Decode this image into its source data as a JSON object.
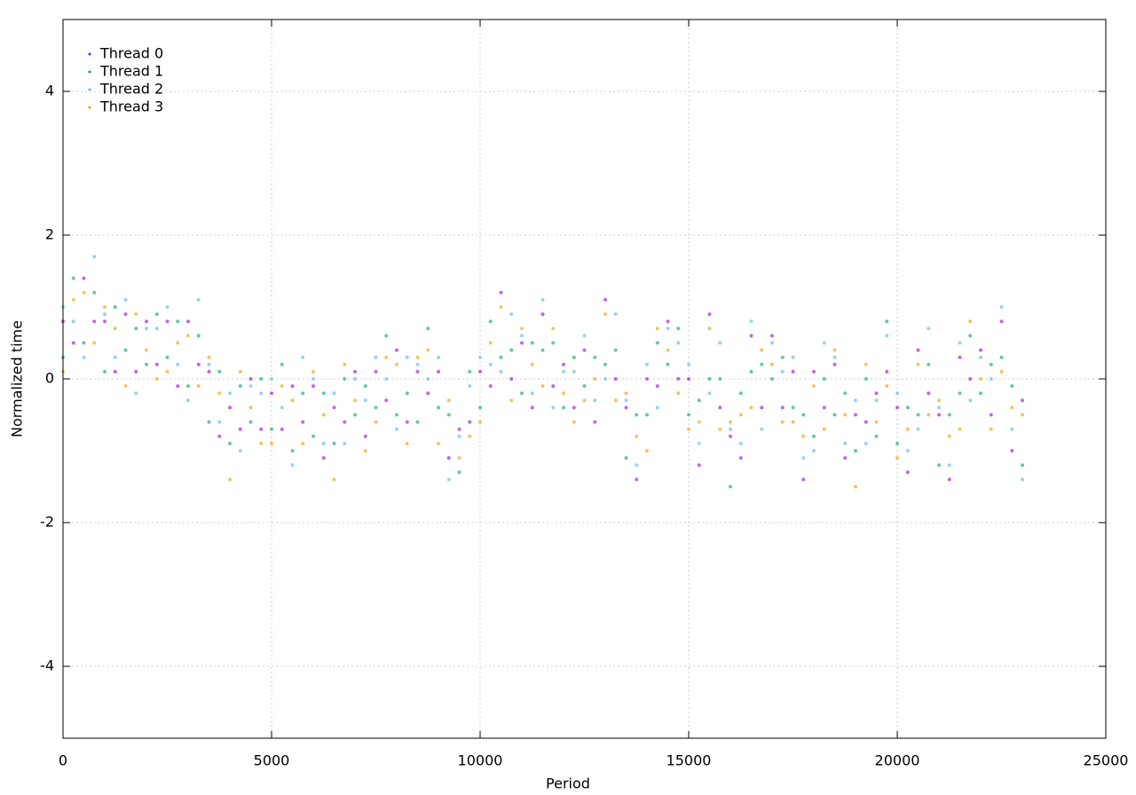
{
  "chart_data": {
    "type": "scatter",
    "xlabel": "Period",
    "ylabel": "Normalized time",
    "xlim": [
      0,
      25000
    ],
    "ylim": [
      -5,
      5
    ],
    "xticks": [
      0,
      5000,
      10000,
      15000,
      20000,
      25000
    ],
    "yticks": [
      -4,
      -2,
      0,
      2,
      4
    ],
    "grid": true,
    "legend": "upper left",
    "x": [
      0,
      250,
      500,
      750,
      1000,
      1250,
      1500,
      1750,
      2000,
      2250,
      2500,
      2750,
      3000,
      3250,
      3500,
      3750,
      4000,
      4250,
      4500,
      4750,
      5000,
      5250,
      5500,
      5750,
      6000,
      6250,
      6500,
      6750,
      7000,
      7250,
      7500,
      7750,
      8000,
      8250,
      8500,
      8750,
      9000,
      9250,
      9500,
      9750,
      10000,
      10250,
      10500,
      10750,
      11000,
      11250,
      11500,
      11750,
      12000,
      12250,
      12500,
      12750,
      13000,
      13250,
      13500,
      13750,
      14000,
      14250,
      14500,
      14750,
      15000,
      15250,
      15500,
      15750,
      16000,
      16250,
      16500,
      16750,
      17000,
      17250,
      17500,
      17750,
      18000,
      18250,
      18500,
      18750,
      19000,
      19250,
      19500,
      19750,
      20000,
      20250,
      20500,
      20750,
      21000,
      21250,
      21500,
      21750,
      22000,
      22250,
      22500,
      22750,
      23000
    ],
    "series": [
      {
        "name": "Thread 0",
        "color": "#9400d3",
        "values": [
          0.8,
          0.5,
          1.4,
          0.8,
          0.8,
          0.1,
          0.9,
          0.1,
          0.8,
          0.2,
          0.8,
          -0.1,
          0.8,
          0.2,
          0.1,
          -0.8,
          -0.4,
          -0.7,
          0.0,
          -0.7,
          -0.2,
          -0.7,
          -0.1,
          -0.6,
          -0.1,
          -1.1,
          -0.4,
          -0.6,
          0.1,
          -0.8,
          0.1,
          -0.3,
          0.4,
          -0.6,
          0.1,
          -0.2,
          0.1,
          -1.1,
          -0.7,
          -0.6,
          0.1,
          -0.1,
          1.2,
          0.0,
          0.5,
          -0.4,
          0.9,
          -0.1,
          0.2,
          -0.4,
          0.4,
          -0.6,
          1.1,
          0.0,
          -0.4,
          -1.4,
          0.0,
          -0.1,
          0.8,
          0.0,
          0.0,
          -1.2,
          0.9,
          -0.4,
          -0.8,
          -1.1,
          0.6,
          -0.4,
          0.6,
          -0.4,
          0.1,
          -1.4,
          0.1,
          -0.4,
          0.2,
          -1.1,
          -0.5,
          -0.6,
          -0.2,
          0.1,
          -0.4,
          -1.3,
          0.4,
          -0.2,
          -0.5,
          -1.4,
          0.3,
          0.0,
          0.4,
          -0.5,
          0.8,
          -1.0,
          -0.3
        ]
      },
      {
        "name": "Thread 1",
        "color": "#009e73",
        "values": [
          0.3,
          1.4,
          0.5,
          1.2,
          0.1,
          1.0,
          0.4,
          0.7,
          0.2,
          0.9,
          0.3,
          0.8,
          -0.1,
          0.6,
          -0.6,
          0.1,
          -0.9,
          -0.1,
          -0.6,
          0.0,
          -0.7,
          0.2,
          -1.0,
          -0.2,
          -0.8,
          -0.2,
          -0.9,
          0.0,
          -0.5,
          -0.1,
          -0.4,
          0.6,
          -0.5,
          -0.2,
          -0.6,
          0.7,
          -0.4,
          -0.5,
          -1.3,
          0.1,
          -0.4,
          0.8,
          0.3,
          0.4,
          -0.2,
          0.5,
          0.4,
          0.5,
          -0.4,
          0.3,
          -0.1,
          0.3,
          0.2,
          0.4,
          -1.1,
          -0.5,
          -0.5,
          0.5,
          0.2,
          0.7,
          -0.5,
          -0.3,
          0.0,
          0.0,
          -1.5,
          -0.2,
          0.1,
          0.2,
          0.0,
          0.3,
          -0.4,
          -0.5,
          -0.8,
          0.0,
          -0.5,
          -0.2,
          -1.0,
          0.0,
          -0.8,
          0.8,
          -0.9,
          -0.4,
          -0.5,
          0.2,
          -1.2,
          -0.5,
          -0.2,
          0.6,
          -0.2,
          0.2,
          0.3,
          -0.1,
          -1.2
        ]
      },
      {
        "name": "Thread 2",
        "color": "#56b4e9",
        "values": [
          1.0,
          0.8,
          0.3,
          1.7,
          0.9,
          0.3,
          1.1,
          -0.2,
          0.7,
          0.7,
          1.0,
          0.2,
          -0.3,
          1.1,
          0.2,
          -0.6,
          -0.2,
          -1.0,
          -0.1,
          -0.2,
          0.0,
          -0.4,
          -1.2,
          0.3,
          0.0,
          -0.9,
          -0.2,
          -0.9,
          0.0,
          -0.3,
          0.3,
          0.0,
          -0.7,
          0.3,
          0.2,
          0.0,
          0.3,
          -1.4,
          -0.8,
          -0.1,
          0.3,
          0.2,
          0.1,
          0.9,
          0.6,
          -0.2,
          1.1,
          -0.4,
          0.1,
          0.1,
          0.6,
          -0.3,
          0.0,
          0.9,
          -0.3,
          -1.2,
          0.2,
          -0.4,
          0.7,
          0.5,
          0.2,
          -0.9,
          -0.2,
          0.5,
          -0.7,
          -0.9,
          0.8,
          -0.7,
          0.5,
          0.1,
          0.3,
          -1.1,
          -1.0,
          0.5,
          0.3,
          -0.9,
          -0.3,
          -0.9,
          -0.3,
          0.6,
          -0.2,
          -1.0,
          -0.7,
          0.7,
          -0.4,
          -1.2,
          0.5,
          -0.3,
          0.3,
          0.0,
          1.0,
          -0.7,
          -1.4
        ]
      },
      {
        "name": "Thread 3",
        "color": "#e69f00",
        "values": [
          0.1,
          1.1,
          1.2,
          0.5,
          1.0,
          0.7,
          -0.1,
          0.9,
          0.4,
          0.0,
          0.1,
          0.5,
          0.6,
          -0.1,
          0.3,
          -0.2,
          -1.4,
          0.1,
          -0.4,
          -0.9,
          -0.9,
          -0.1,
          -0.3,
          -0.9,
          0.1,
          -0.5,
          -1.4,
          0.2,
          -0.3,
          -1.0,
          -0.6,
          0.3,
          0.2,
          -0.9,
          0.3,
          0.4,
          -0.9,
          -0.3,
          -1.1,
          -0.8,
          -0.6,
          0.5,
          1.0,
          -0.3,
          0.7,
          0.2,
          -0.1,
          0.7,
          -0.2,
          -0.6,
          -0.3,
          0.0,
          0.9,
          -0.3,
          -0.2,
          -0.8,
          -1.0,
          0.7,
          0.4,
          -0.2,
          -0.7,
          -0.6,
          0.7,
          -0.7,
          -0.6,
          -0.5,
          -0.4,
          0.4,
          0.2,
          -0.6,
          -0.6,
          -0.8,
          -0.1,
          -0.7,
          0.4,
          -0.5,
          -1.5,
          0.2,
          -0.6,
          -0.1,
          -1.1,
          -0.7,
          0.2,
          -0.5,
          -0.3,
          -0.8,
          -0.7,
          0.8,
          0.0,
          -0.7,
          0.1,
          -0.4,
          -0.5
        ]
      }
    ]
  }
}
